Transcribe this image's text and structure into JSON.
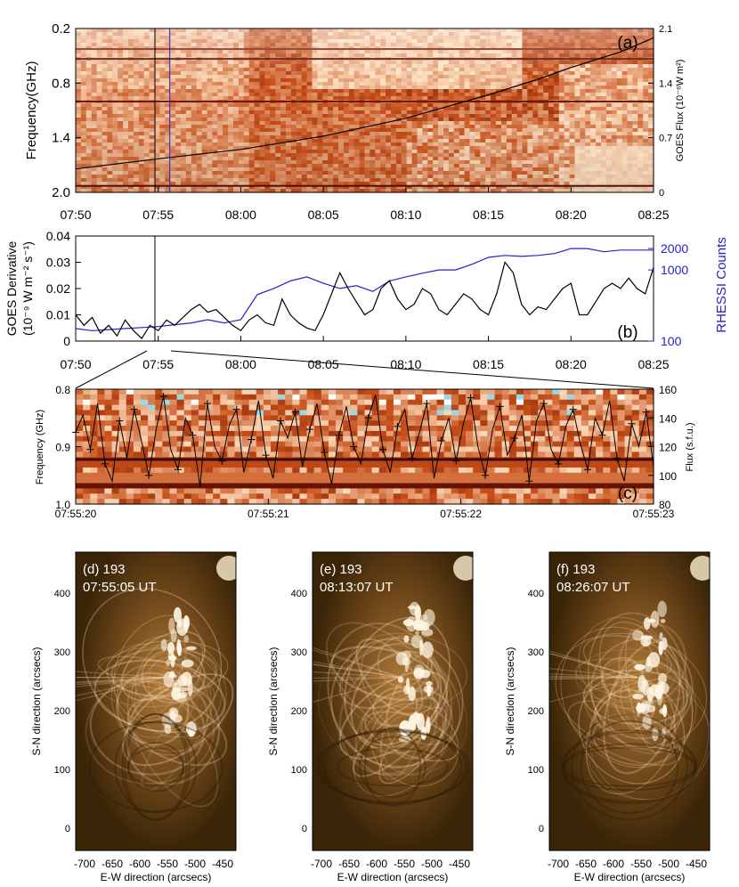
{
  "figure": {
    "colors": {
      "dynspec_dark": "#5a0c02",
      "dynspec_mid": "#c8501a",
      "dynspec_light": "#ffe6c8",
      "goes_line": "#000000",
      "rhessi_line": "#2222cc",
      "aia_dark": "#2a1a08",
      "aia_bright": "#fff3e0"
    }
  },
  "chart_data": [
    {
      "id": "a",
      "type": "heatmap",
      "panel_label": "(a)",
      "xlabel": "",
      "ylabel": "Frequency(GHz)",
      "y2label": "GOES Flux (10⁻⁶W m²)",
      "x_ticks": [
        "07:50",
        "07:55",
        "08:00",
        "08:05",
        "08:10",
        "08:15",
        "08:20",
        "08:25"
      ],
      "y_ticks": [
        "0.2",
        "0.8",
        "1.4",
        "2.0"
      ],
      "y2_ticks": [
        "2.1",
        "1.4",
        "0.7",
        "0"
      ],
      "xlim_min": [
        0,
        35
      ],
      "freq_range_ghz": [
        0.2,
        2.0
      ],
      "goes_flux_range": [
        0,
        2.1
      ],
      "goes_flux_series": {
        "x_min": [
          0,
          5,
          10,
          15,
          20,
          25,
          28,
          30,
          33,
          35
        ],
        "y": [
          0.3,
          0.43,
          0.55,
          0.72,
          0.95,
          1.25,
          1.45,
          1.6,
          1.8,
          1.98
        ]
      },
      "vertical_markers_min": [
        {
          "t": 4.8,
          "color": "black"
        },
        {
          "t": 5.7,
          "color": "blue"
        }
      ]
    },
    {
      "id": "b",
      "type": "line",
      "panel_label": "(b)",
      "ylabel_line1": "GOES Derivative",
      "ylabel_line2": "(10⁻⁹ W m⁻² s⁻¹)",
      "y2label": "RHESSI Counts",
      "x_ticks": [
        "07:50",
        "07:55",
        "08:00",
        "08:05",
        "08:10",
        "08:15",
        "08:20",
        "08:25"
      ],
      "y_ticks": [
        "0.04",
        "0.03",
        "0.02",
        "0.01",
        "0"
      ],
      "ylim": [
        0,
        0.04
      ],
      "y2_ticks": [
        "2000",
        "1000",
        "100"
      ],
      "y2lim_log": [
        100,
        3000
      ],
      "series": [
        {
          "name": "GOES Derivative",
          "x_min": [
            0,
            0.5,
            1,
            1.5,
            2,
            2.5,
            3,
            3.5,
            4,
            4.5,
            5,
            5.5,
            6,
            6.5,
            7,
            7.5,
            8,
            8.5,
            9,
            9.5,
            10,
            10.5,
            11,
            11.5,
            12,
            12.5,
            13,
            13.5,
            14,
            14.5,
            15,
            15.5,
            16,
            16.5,
            17,
            17.5,
            18,
            18.5,
            19,
            19.5,
            20,
            20.5,
            21,
            21.5,
            22,
            22.5,
            23,
            23.5,
            24,
            24.5,
            25,
            25.5,
            26,
            26.5,
            27,
            27.5,
            28,
            28.5,
            29,
            29.5,
            30,
            30.5,
            31,
            31.5,
            32,
            32.5,
            33,
            33.5,
            34,
            34.5,
            35
          ],
          "y": [
            0.01,
            0.006,
            0.009,
            0.003,
            0.006,
            0.002,
            0.008,
            0.004,
            0.001,
            0.006,
            0.004,
            0.008,
            0.006,
            0.009,
            0.012,
            0.014,
            0.011,
            0.012,
            0.009,
            0.006,
            0.004,
            0.008,
            0.01,
            0.007,
            0.006,
            0.016,
            0.01,
            0.007,
            0.005,
            0.004,
            0.01,
            0.018,
            0.026,
            0.02,
            0.015,
            0.01,
            0.012,
            0.02,
            0.023,
            0.016,
            0.012,
            0.014,
            0.02,
            0.018,
            0.012,
            0.01,
            0.014,
            0.018,
            0.016,
            0.012,
            0.01,
            0.018,
            0.03,
            0.026,
            0.014,
            0.01,
            0.013,
            0.012,
            0.016,
            0.02,
            0.022,
            0.01,
            0.01,
            0.015,
            0.02,
            0.022,
            0.02,
            0.024,
            0.02,
            0.018,
            0.028
          ]
        },
        {
          "name": "RHESSI Counts",
          "x_min": [
            0,
            1,
            2,
            3,
            4,
            5,
            6,
            7,
            8,
            9,
            10,
            11,
            12,
            13,
            14,
            15,
            16,
            17,
            18,
            19,
            20,
            21,
            22,
            23,
            24,
            25,
            26,
            27,
            28,
            29,
            30,
            31,
            32,
            33,
            34,
            35
          ],
          "y": [
            150,
            140,
            145,
            150,
            155,
            160,
            170,
            180,
            200,
            180,
            200,
            450,
            550,
            700,
            800,
            650,
            550,
            600,
            500,
            700,
            800,
            900,
            1000,
            1000,
            1200,
            1500,
            1600,
            1550,
            1600,
            1700,
            2000,
            2000,
            1800,
            1900,
            1900,
            1900
          ]
        }
      ],
      "vertical_marker_min": 4.8
    },
    {
      "id": "c",
      "type": "heatmap",
      "panel_label": "(c)",
      "ylabel": "Frequency (GHz)",
      "y2label": "Flux (s.f.u.)",
      "x_ticks": [
        "07:55:20",
        "07:55:21",
        "07:55:22",
        "07:55:23"
      ],
      "y_ticks": [
        "0.8",
        "0.9",
        "1.0"
      ],
      "y2_ticks": [
        "160",
        "140",
        "120",
        "100",
        "80"
      ],
      "freq_range_ghz": [
        0.8,
        1.0
      ],
      "flux_range_sfu": [
        80,
        160
      ],
      "flux_series_sfu": [
        130,
        142,
        118,
        150,
        108,
        96,
        138,
        112,
        146,
        124,
        100,
        132,
        155,
        118,
        104,
        140,
        128,
        92,
        150,
        120,
        110,
        135,
        146,
        102,
        125,
        152,
        114,
        98,
        138,
        126,
        144,
        106,
        132,
        150,
        116,
        94,
        128,
        148,
        120,
        108,
        140,
        156,
        118,
        102,
        134,
        146,
        112,
        130,
        150,
        98,
        124,
        140,
        110,
        136,
        154,
        120,
        100,
        132,
        148,
        114,
        126,
        142,
        96,
        138,
        150,
        118,
        108,
        134,
        146,
        122,
        104,
        140,
        128,
        152,
        112,
        96,
        136,
        120,
        144,
        106
      ]
    },
    {
      "id": "d",
      "type": "heatmap",
      "panel_label": "(d) 193",
      "time": "07:55:05 UT",
      "xlabel": "E-W direction (arcsecs)",
      "ylabel": "S-N direction (arcsecs)",
      "x_ticks": [
        "-700",
        "-650",
        "-600",
        "-550",
        "-500",
        "-450"
      ],
      "y_ticks": [
        "400",
        "300",
        "200",
        "100",
        "0"
      ]
    },
    {
      "id": "e",
      "type": "heatmap",
      "panel_label": "(e) 193",
      "time": "08:13:07 UT",
      "xlabel": "E-W direction (arcsecs)",
      "ylabel": "S-N direction (arcsecs)",
      "x_ticks": [
        "-700",
        "-650",
        "-600",
        "-550",
        "-500",
        "-450"
      ],
      "y_ticks": [
        "400",
        "300",
        "200",
        "100",
        "0"
      ]
    },
    {
      "id": "f",
      "type": "heatmap",
      "panel_label": "(f) 193",
      "time": "08:26:07 UT",
      "xlabel": "E-W direction (arcsecs)",
      "ylabel": "S-N direction (arcsecs)",
      "x_ticks": [
        "-700",
        "-650",
        "-600",
        "-550",
        "-500",
        "-450"
      ],
      "y_ticks": [
        "400",
        "300",
        "200",
        "100",
        "0"
      ]
    }
  ]
}
